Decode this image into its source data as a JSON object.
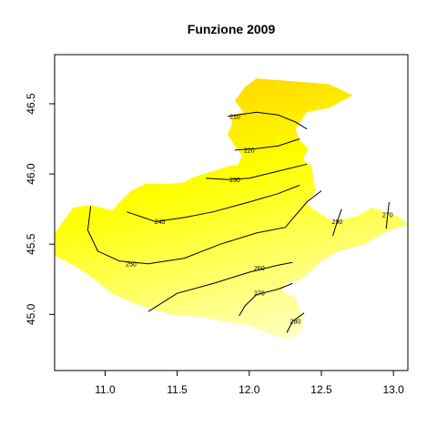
{
  "chart_data": {
    "type": "heatmap",
    "title": "Funzione 2009",
    "xlabel": "",
    "ylabel": "",
    "xlim": [
      10.65,
      13.1
    ],
    "ylim": [
      44.6,
      46.85
    ],
    "x_ticks": [
      {
        "value": 11.0,
        "label": "11.0"
      },
      {
        "value": 11.5,
        "label": "11.5"
      },
      {
        "value": 12.0,
        "label": "12.0"
      },
      {
        "value": 12.5,
        "label": "12.5"
      },
      {
        "value": 13.0,
        "label": "13.0"
      }
    ],
    "y_ticks": [
      {
        "value": 45.0,
        "label": "45.0"
      },
      {
        "value": 45.5,
        "label": "45.5"
      },
      {
        "value": 46.0,
        "label": "46.0"
      },
      {
        "value": 46.5,
        "label": "46.5"
      }
    ],
    "colors": {
      "low": "#FFD500",
      "mid": "#FFFF00",
      "high": "#FFFFCC",
      "contour": "#000000"
    },
    "region_outline": [
      [
        12.05,
        46.68
      ],
      [
        12.3,
        46.66
      ],
      [
        12.55,
        46.64
      ],
      [
        12.72,
        46.56
      ],
      [
        12.55,
        46.47
      ],
      [
        12.4,
        46.44
      ],
      [
        12.32,
        46.32
      ],
      [
        12.35,
        46.24
      ],
      [
        12.41,
        46.18
      ],
      [
        12.37,
        46.1
      ],
      [
        12.43,
        46.06
      ],
      [
        12.46,
        45.88
      ],
      [
        12.4,
        45.78
      ],
      [
        12.58,
        45.66
      ],
      [
        12.75,
        45.7
      ],
      [
        12.85,
        45.76
      ],
      [
        13.03,
        45.7
      ],
      [
        13.1,
        45.64
      ],
      [
        12.93,
        45.58
      ],
      [
        12.8,
        45.5
      ],
      [
        12.62,
        45.45
      ],
      [
        12.5,
        45.38
      ],
      [
        12.42,
        45.3
      ],
      [
        12.36,
        45.25
      ],
      [
        12.26,
        45.22
      ],
      [
        12.23,
        45.16
      ],
      [
        12.32,
        45.12
      ],
      [
        12.35,
        45.04
      ],
      [
        12.38,
        44.96
      ],
      [
        12.36,
        44.88
      ],
      [
        12.31,
        44.84
      ],
      [
        12.22,
        44.83
      ],
      [
        12.12,
        44.87
      ],
      [
        12.0,
        44.92
      ],
      [
        11.82,
        44.95
      ],
      [
        11.68,
        44.98
      ],
      [
        11.45,
        45.0
      ],
      [
        11.32,
        45.04
      ],
      [
        11.2,
        45.08
      ],
      [
        11.05,
        45.15
      ],
      [
        10.9,
        45.27
      ],
      [
        10.78,
        45.35
      ],
      [
        10.65,
        45.42
      ],
      [
        10.65,
        45.58
      ],
      [
        10.78,
        45.76
      ],
      [
        10.9,
        45.78
      ],
      [
        11.05,
        45.74
      ],
      [
        11.12,
        45.82
      ],
      [
        11.18,
        45.88
      ],
      [
        11.28,
        45.93
      ],
      [
        11.45,
        45.93
      ],
      [
        11.55,
        45.94
      ],
      [
        11.62,
        45.98
      ],
      [
        11.75,
        46.02
      ],
      [
        11.87,
        46.06
      ],
      [
        11.92,
        46.06
      ],
      [
        11.95,
        46.13
      ],
      [
        11.9,
        46.2
      ],
      [
        11.85,
        46.28
      ],
      [
        11.88,
        46.35
      ],
      [
        11.88,
        46.42
      ],
      [
        11.96,
        46.44
      ],
      [
        11.9,
        46.52
      ],
      [
        11.97,
        46.62
      ]
    ],
    "contours": [
      {
        "level": 210,
        "label": "210",
        "points": [
          [
            11.85,
            46.41
          ],
          [
            12.05,
            46.44
          ],
          [
            12.2,
            46.42
          ],
          [
            12.32,
            46.37
          ],
          [
            12.4,
            46.32
          ]
        ],
        "label_at": [
          11.9,
          46.41
        ]
      },
      {
        "level": 220,
        "label": "220",
        "points": [
          [
            11.9,
            46.17
          ],
          [
            12.05,
            46.18
          ],
          [
            12.2,
            46.2
          ],
          [
            12.35,
            46.25
          ]
        ],
        "label_at": [
          12.0,
          46.17
        ]
      },
      {
        "level": 230,
        "label": "230",
        "points": [
          [
            11.7,
            45.97
          ],
          [
            11.85,
            45.96
          ],
          [
            12.0,
            45.97
          ],
          [
            12.2,
            46.02
          ],
          [
            12.4,
            46.07
          ]
        ],
        "label_at": [
          11.9,
          45.96
        ]
      },
      {
        "level": 240,
        "label": "240",
        "points": [
          [
            11.15,
            45.73
          ],
          [
            11.35,
            45.66
          ],
          [
            11.55,
            45.69
          ],
          [
            11.75,
            45.73
          ],
          [
            12.0,
            45.8
          ],
          [
            12.2,
            45.86
          ],
          [
            12.35,
            45.92
          ]
        ],
        "label_at": [
          11.38,
          45.66
        ]
      },
      {
        "level": 250,
        "label": "250",
        "points": [
          [
            10.9,
            45.77
          ],
          [
            10.88,
            45.6
          ],
          [
            10.95,
            45.45
          ],
          [
            11.1,
            45.38
          ],
          [
            11.3,
            45.36
          ],
          [
            11.55,
            45.4
          ],
          [
            11.8,
            45.5
          ],
          [
            12.05,
            45.58
          ],
          [
            12.25,
            45.62
          ],
          [
            12.4,
            45.8
          ],
          [
            12.5,
            45.88
          ]
        ],
        "label_at": [
          11.18,
          45.36
        ]
      },
      {
        "level": 260,
        "label": "260",
        "points": [
          [
            11.3,
            45.02
          ],
          [
            11.5,
            45.15
          ],
          [
            11.75,
            45.22
          ],
          [
            12.0,
            45.3
          ],
          [
            12.2,
            45.35
          ],
          [
            12.3,
            45.37
          ]
        ],
        "label_at": [
          12.07,
          45.33
        ]
      },
      {
        "level": 270,
        "label": "270",
        "points": [
          [
            11.93,
            44.99
          ],
          [
            11.97,
            45.06
          ],
          [
            12.05,
            45.14
          ],
          [
            12.2,
            45.18
          ],
          [
            12.3,
            45.22
          ]
        ],
        "label_at": [
          12.07,
          45.15
        ]
      },
      {
        "level": 280,
        "label": "280",
        "points": [
          [
            12.26,
            44.87
          ],
          [
            12.3,
            44.95
          ],
          [
            12.38,
            45.01
          ]
        ],
        "label_at": [
          12.32,
          44.95
        ]
      },
      {
        "level": 290,
        "label": "290",
        "points": [
          [
            12.58,
            45.56
          ],
          [
            12.61,
            45.66
          ],
          [
            12.64,
            45.75
          ]
        ],
        "label_at": [
          12.61,
          45.66
        ]
      },
      {
        "level": 270,
        "label": "270",
        "points": [
          [
            12.95,
            45.61
          ],
          [
            12.96,
            45.71
          ],
          [
            12.97,
            45.8
          ]
        ],
        "label_at": [
          12.96,
          45.71
        ]
      }
    ]
  }
}
